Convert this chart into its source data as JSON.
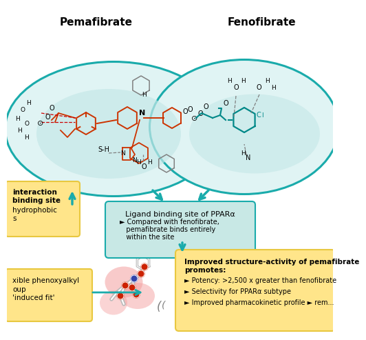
{
  "title_left": "Pemafibrate",
  "title_right": "Fenofibrate",
  "teal": "#1AABAB",
  "teal_fill": "#E0F4F4",
  "teal_blob": "#C5E8E8",
  "yellow_bg": "#FFE58A",
  "yellow_border": "#E8C840",
  "ligand_box_bg": "#C8E8E5",
  "ligand_box_border": "#1AABAB",
  "ligand_title": "Ligand binding site of PPARα",
  "ligand_bullet": "Compared with fenofibrate,\npemafibrate binds entirely\nwithin the site",
  "right_box_title": "Improved structure-activity of pemafibrate\npromotes:",
  "right_box_bullets": [
    "Potency: >2,500 x greater than fenofibrate",
    "Selectivity for PPARα subtype",
    "Improved pharmacokinetic profile ► rem..."
  ],
  "arrow_color": "#1AABAB",
  "pink": "#F4A0A0",
  "red_mol": "#CC3300",
  "teal_mol": "#008888"
}
